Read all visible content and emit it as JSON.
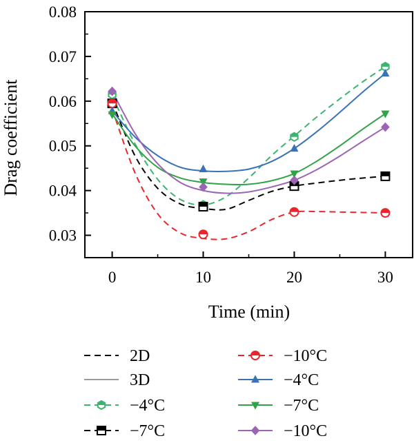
{
  "chart_data": {
    "type": "line",
    "title": "",
    "xlabel": "Time (min)",
    "ylabel": "Drag coefficient",
    "x": [
      0,
      10,
      20,
      30
    ],
    "xlim": [
      -3,
      33
    ],
    "ylim": [
      0.025,
      0.08
    ],
    "xticks": [
      "0",
      "10",
      "20",
      "30"
    ],
    "yticks": [
      "0.03",
      "0.04",
      "0.05",
      "0.06",
      "0.07",
      "0.08"
    ],
    "grid": false,
    "legend_placement": "below",
    "style_legend": [
      {
        "name": "2D",
        "dash": "dashed"
      },
      {
        "name": "3D",
        "dash": "solid"
      }
    ],
    "series": [
      {
        "name": "−4°C",
        "group": "2D",
        "color": "#3cb371",
        "marker": "hexagon-half",
        "values": [
          0.0615,
          0.0368,
          0.052,
          0.0677
        ],
        "fit": [
          [
            0,
            0.0612
          ],
          [
            2.5,
            0.0505
          ],
          [
            5,
            0.0425
          ],
          [
            7.5,
            0.038
          ],
          [
            10,
            0.0368
          ],
          [
            12.5,
            0.0386
          ],
          [
            15,
            0.0428
          ],
          [
            17.5,
            0.0478
          ],
          [
            20,
            0.0522
          ],
          [
            22.5,
            0.0565
          ],
          [
            25,
            0.0605
          ],
          [
            27.5,
            0.0643
          ],
          [
            30,
            0.0677
          ]
        ]
      },
      {
        "name": "−7°C",
        "group": "2D",
        "color": "#000000",
        "marker": "square-half",
        "values": [
          0.0595,
          0.0364,
          0.041,
          0.0432
        ],
        "fit": [
          [
            0,
            0.0598
          ],
          [
            2.5,
            0.0478
          ],
          [
            5,
            0.0405
          ],
          [
            7.5,
            0.037
          ],
          [
            10,
            0.036
          ],
          [
            12.5,
            0.0358
          ],
          [
            15,
            0.0378
          ],
          [
            17.5,
            0.0398
          ],
          [
            20,
            0.041
          ],
          [
            22.5,
            0.0417
          ],
          [
            25,
            0.0423
          ],
          [
            27.5,
            0.0428
          ],
          [
            30,
            0.0432
          ]
        ]
      },
      {
        "name": "−10°C",
        "group": "2D",
        "color": "#e8262b",
        "marker": "circle-half",
        "values": [
          0.0595,
          0.0302,
          0.0352,
          0.035
        ],
        "fit": [
          [
            0,
            0.0582
          ],
          [
            2.5,
            0.044
          ],
          [
            5,
            0.0348
          ],
          [
            7.5,
            0.0305
          ],
          [
            10,
            0.0293
          ],
          [
            12.5,
            0.0292
          ],
          [
            15,
            0.0308
          ],
          [
            17.5,
            0.0335
          ],
          [
            20,
            0.0352
          ],
          [
            22.5,
            0.0353
          ],
          [
            25,
            0.0352
          ],
          [
            27.5,
            0.0351
          ],
          [
            30,
            0.035
          ]
        ]
      },
      {
        "name": "−4°C",
        "group": "3D",
        "color": "#3a72b8",
        "marker": "triangle-up",
        "values": [
          0.0578,
          0.0448,
          0.0494,
          0.0662
        ],
        "fit": [
          [
            0,
            0.0578
          ],
          [
            2.5,
            0.052
          ],
          [
            5,
            0.0478
          ],
          [
            7.5,
            0.0452
          ],
          [
            10,
            0.0444
          ],
          [
            12.5,
            0.0443
          ],
          [
            15,
            0.0448
          ],
          [
            17.5,
            0.0465
          ],
          [
            20,
            0.0494
          ],
          [
            22.5,
            0.0532
          ],
          [
            25,
            0.0575
          ],
          [
            27.5,
            0.062
          ],
          [
            30,
            0.0662
          ]
        ]
      },
      {
        "name": "−7°C",
        "group": "3D",
        "color": "#2fa346",
        "marker": "triangle-down",
        "values": [
          0.057,
          0.042,
          0.0438,
          0.0572
        ],
        "fit": [
          [
            0,
            0.0572
          ],
          [
            2.5,
            0.05
          ],
          [
            5,
            0.0452
          ],
          [
            7.5,
            0.0428
          ],
          [
            10,
            0.0418
          ],
          [
            12.5,
            0.0414
          ],
          [
            15,
            0.0414
          ],
          [
            17.5,
            0.0422
          ],
          [
            20,
            0.0438
          ],
          [
            22.5,
            0.0466
          ],
          [
            25,
            0.05
          ],
          [
            27.5,
            0.0537
          ],
          [
            30,
            0.0572
          ]
        ]
      },
      {
        "name": "−10°C",
        "group": "3D",
        "color": "#9b65b4",
        "marker": "diamond",
        "values": [
          0.0622,
          0.0408,
          0.0423,
          0.0542
        ],
        "fit": [
          [
            0,
            0.0622
          ],
          [
            2.5,
            0.0528
          ],
          [
            5,
            0.046
          ],
          [
            7.5,
            0.0418
          ],
          [
            10,
            0.04
          ],
          [
            12.5,
            0.0394
          ],
          [
            15,
            0.0397
          ],
          [
            17.5,
            0.0408
          ],
          [
            20,
            0.0423
          ],
          [
            22.5,
            0.0447
          ],
          [
            25,
            0.0477
          ],
          [
            27.5,
            0.051
          ],
          [
            30,
            0.0542
          ]
        ]
      }
    ]
  }
}
